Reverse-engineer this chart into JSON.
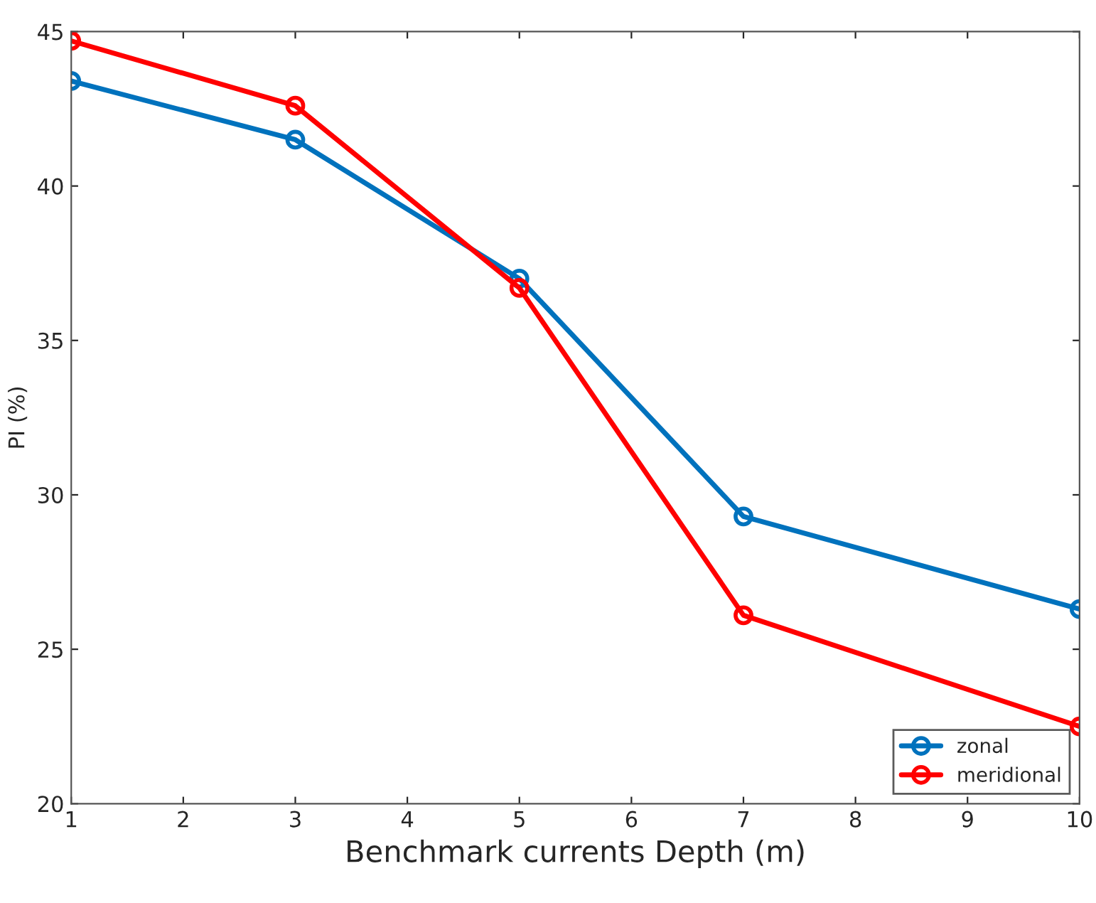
{
  "chart_data": {
    "type": "line",
    "xlabel": "Benchmark currents Depth (m)",
    "ylabel": "PI (%)",
    "x": [
      1,
      3,
      5,
      7,
      10
    ],
    "series": [
      {
        "name": "zonal",
        "color": "#0072bd",
        "values": [
          43.4,
          41.5,
          37.0,
          29.3,
          26.3
        ]
      },
      {
        "name": "meridional",
        "color": "#ff0000",
        "values": [
          44.7,
          42.6,
          36.7,
          26.1,
          22.5
        ]
      }
    ],
    "xlim": [
      1,
      10
    ],
    "xticks": [
      1,
      2,
      3,
      4,
      5,
      6,
      7,
      8,
      9,
      10
    ],
    "ylim": [
      20,
      45
    ],
    "yticks": [
      20,
      25,
      30,
      35,
      40,
      45
    ],
    "grid": false,
    "legend": "bottom right",
    "marker": "circle",
    "line_style": "solid"
  }
}
